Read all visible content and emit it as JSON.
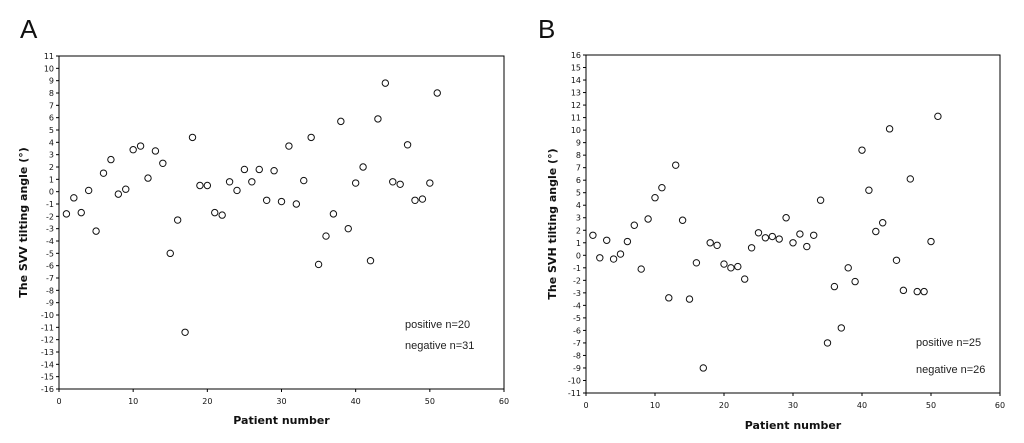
{
  "panels": [
    {
      "letter": "A"
    },
    {
      "letter": "B"
    }
  ],
  "chart_data": [
    {
      "type": "scatter",
      "title": "",
      "xlabel": "Patient number",
      "ylabel": "The SVV tilting angle (°)",
      "xlim": [
        0,
        60
      ],
      "ylim": [
        -16,
        11
      ],
      "xticks": [
        0,
        10,
        20,
        30,
        40,
        50,
        60
      ],
      "yticks": [
        -16,
        -15,
        -14,
        -13,
        -12,
        -11,
        -10,
        -9,
        -8,
        -7,
        -6,
        -5,
        -4,
        -3,
        -2,
        -1,
        0,
        1,
        2,
        3,
        4,
        5,
        6,
        7,
        8,
        9,
        10,
        11
      ],
      "grid": false,
      "marker": "open-circle",
      "annotations": [
        "positive n=20",
        "negative n=31"
      ],
      "x": [
        1,
        2,
        3,
        4,
        5,
        6,
        7,
        8,
        9,
        10,
        11,
        12,
        13,
        14,
        15,
        16,
        17,
        18,
        19,
        20,
        21,
        22,
        23,
        24,
        25,
        26,
        27,
        28,
        29,
        30,
        31,
        32,
        33,
        34,
        35,
        36,
        37,
        38,
        39,
        40,
        41,
        42,
        43,
        44,
        45,
        46,
        47,
        48,
        49,
        50,
        51
      ],
      "y": [
        -1.8,
        -0.5,
        -1.7,
        0.1,
        -3.2,
        1.5,
        2.6,
        -0.2,
        0.2,
        3.4,
        3.7,
        1.1,
        3.3,
        2.3,
        -5.0,
        -2.3,
        -11.4,
        4.4,
        0.5,
        0.5,
        -1.7,
        -1.9,
        0.8,
        0.1,
        1.8,
        0.8,
        1.8,
        -0.7,
        1.7,
        -0.8,
        3.7,
        -1.0,
        0.9,
        4.4,
        -5.9,
        -3.6,
        -1.8,
        5.7,
        -3.0,
        0.7,
        2.0,
        -5.6,
        5.9,
        8.8,
        0.8,
        0.6,
        3.8,
        -0.7,
        -0.6,
        0.7,
        8.0
      ]
    },
    {
      "type": "scatter",
      "title": "",
      "xlabel": "Patient number",
      "ylabel": "The SVH tilting angle (°)",
      "xlim": [
        0,
        60
      ],
      "ylim": [
        -11,
        16
      ],
      "xticks": [
        0,
        10,
        20,
        30,
        40,
        50,
        60
      ],
      "yticks": [
        -11,
        -10,
        -9,
        -8,
        -7,
        -6,
        -5,
        -4,
        -3,
        -2,
        -1,
        0,
        1,
        2,
        3,
        4,
        5,
        6,
        7,
        8,
        9,
        10,
        11,
        12,
        13,
        14,
        15,
        16
      ],
      "grid": false,
      "marker": "open-circle",
      "annotations": [
        "positive n=25",
        "negative n=26"
      ],
      "x": [
        1,
        2,
        3,
        4,
        5,
        6,
        7,
        8,
        9,
        10,
        11,
        12,
        13,
        14,
        15,
        16,
        17,
        18,
        19,
        20,
        21,
        22,
        23,
        24,
        25,
        26,
        27,
        28,
        29,
        30,
        31,
        32,
        33,
        34,
        35,
        36,
        37,
        38,
        39,
        40,
        41,
        42,
        43,
        44,
        45,
        46,
        47,
        48,
        49,
        50,
        51
      ],
      "y": [
        1.6,
        -0.2,
        1.2,
        -0.3,
        0.1,
        1.1,
        2.4,
        -1.1,
        2.9,
        4.6,
        5.4,
        -3.4,
        7.2,
        2.8,
        -3.5,
        -0.6,
        -9.0,
        1.0,
        0.8,
        -0.7,
        -1.0,
        -0.9,
        -1.9,
        0.6,
        1.8,
        1.4,
        1.5,
        1.3,
        3.0,
        1.0,
        1.7,
        0.7,
        1.6,
        4.4,
        -7.0,
        -2.5,
        -5.8,
        -1.0,
        -2.1,
        8.4,
        5.2,
        1.9,
        2.6,
        10.1,
        -0.4,
        -2.8,
        6.1,
        -2.9,
        -2.9,
        1.1,
        11.1
      ]
    }
  ]
}
